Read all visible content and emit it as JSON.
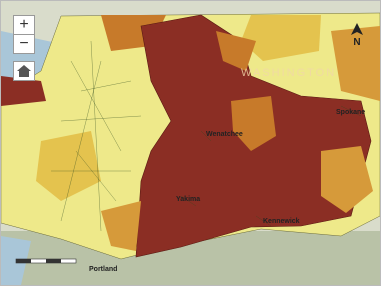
{
  "map": {
    "state_label": "WASHINGTON",
    "cities": [
      "Wenatchee",
      "Spokane",
      "Yakima",
      "Kennewick",
      "Portland"
    ],
    "controls": {
      "zoom_in": "+",
      "zoom_out": "−",
      "north": "N"
    }
  }
}
